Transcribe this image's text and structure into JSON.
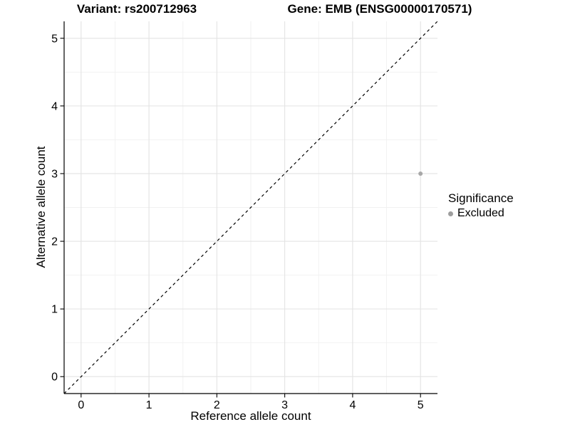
{
  "header": {
    "variant_title": "Variant: rs200712963",
    "gene_title": "Gene: EMB (ENSG00000170571)"
  },
  "legend": {
    "title": "Significance",
    "items": [
      {
        "label": "Excluded",
        "color": "#9e9e9e",
        "marker": "circle"
      }
    ]
  },
  "chart_data": {
    "type": "scatter",
    "title_left": "Variant: rs200712963",
    "title_right": "Gene: EMB (ENSG00000170571)",
    "xlabel": "Reference allele count",
    "ylabel": "Alternative allele count",
    "xlim": [
      -0.25,
      5.25
    ],
    "ylim": [
      -0.25,
      5.25
    ],
    "x_ticks": [
      0,
      1,
      2,
      3,
      4,
      5
    ],
    "y_ticks": [
      0,
      1,
      2,
      3,
      4,
      5
    ],
    "x_minor_ticks": [
      0.5,
      1.5,
      2.5,
      3.5,
      4.5
    ],
    "y_minor_ticks": [
      0.5,
      1.5,
      2.5,
      3.5,
      4.5
    ],
    "grid": "major+minor",
    "legend_position": "right",
    "legend_title": "Significance",
    "series": [
      {
        "name": "Excluded",
        "color": "#9e9e9e",
        "marker": "circle",
        "points": [
          {
            "x": 5,
            "y": 3
          }
        ]
      }
    ],
    "reference_line": {
      "kind": "identity y=x",
      "style": "dashed",
      "color": "#000000"
    }
  },
  "colors": {
    "background": "#ffffff",
    "grid_major": "#e3e3e3",
    "grid_minor": "#f1f1f1",
    "axis": "#000000",
    "tick_text": "#000000",
    "point": "#a8a8a8"
  }
}
